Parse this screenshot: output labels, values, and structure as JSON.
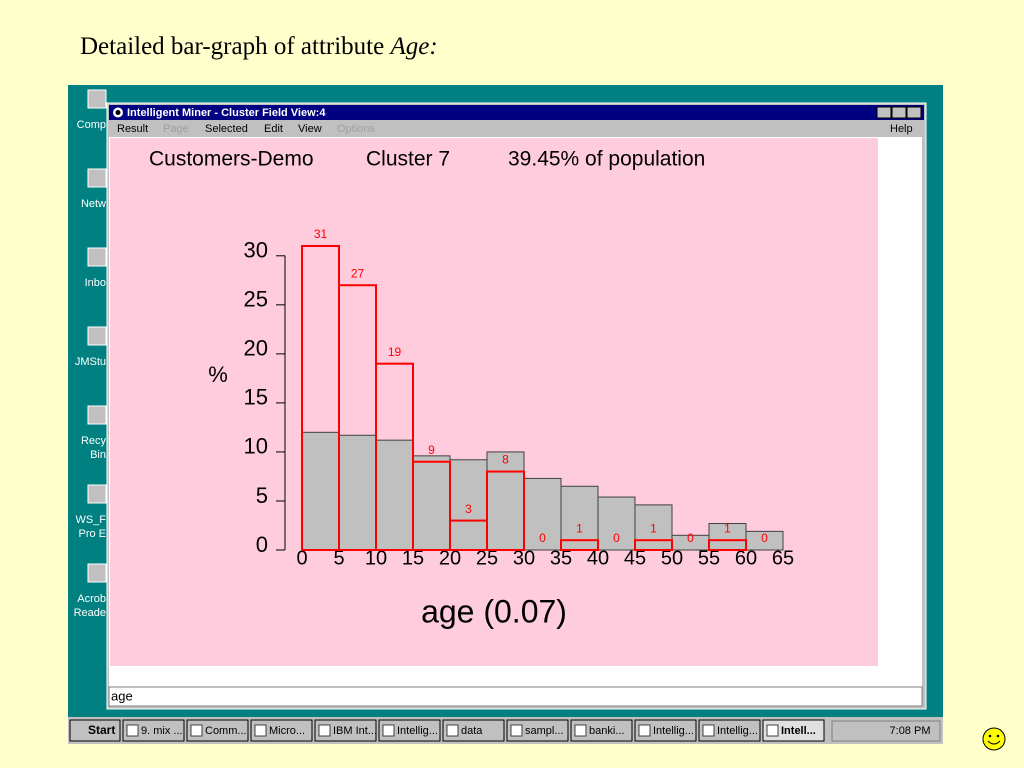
{
  "slide": {
    "title": "Detailed bar-graph of  attribute ",
    "title_italic": "Age:"
  },
  "desktop": {
    "icons": [
      [
        "Comp"
      ],
      [
        "Netw"
      ],
      [
        "Inbo"
      ],
      [
        "JMStu"
      ],
      [
        "Recy",
        "Bin"
      ],
      [
        "WS_F",
        "Pro E"
      ],
      [
        "Acrob",
        "Reade"
      ]
    ]
  },
  "window": {
    "title": "Intelligent Miner - Cluster Field View:4",
    "menu": [
      {
        "label": "Result",
        "enabled": true
      },
      {
        "label": "Page",
        "enabled": false
      },
      {
        "label": "Selected",
        "enabled": true
      },
      {
        "label": "Edit",
        "enabled": true
      },
      {
        "label": "View",
        "enabled": true
      },
      {
        "label": "Options",
        "enabled": false
      }
    ],
    "help": "Help",
    "status": "age"
  },
  "taskbar": {
    "start": "Start",
    "buttons": [
      "9. mix ...",
      "Comm...",
      "Micro...",
      "IBM Int...",
      "Intellig...",
      "data",
      "sampl...",
      "banki...",
      "Intellig...",
      "Intellig...",
      "Intell..."
    ],
    "clock": "7:08 PM"
  },
  "chart_data": {
    "type": "histogram",
    "title_parts": [
      "Customers-Demo",
      "Cluster 7",
      "39.45% of population"
    ],
    "y_label": "%",
    "x_label": "age (0.07)",
    "bins": [
      0,
      5,
      10,
      15,
      20,
      25,
      30,
      35,
      40,
      45,
      50,
      55,
      60,
      65
    ],
    "xlim": [
      0,
      65
    ],
    "xticks": [
      0,
      5,
      10,
      15,
      20,
      25,
      30,
      35,
      40,
      45,
      50,
      55,
      60,
      65
    ],
    "ylim": [
      0,
      31
    ],
    "yticks": [
      0,
      5,
      10,
      15,
      20,
      25,
      30
    ],
    "series": [
      {
        "color": "#c0c0c0",
        "values": [
          12,
          11.7,
          11.2,
          9.6,
          9.2,
          10,
          7.3,
          6.5,
          5.4,
          4.6,
          1.5,
          2.7,
          1.9
        ]
      },
      {
        "color": "#ff0000",
        "values": [
          31,
          27,
          19,
          9,
          3,
          8,
          0,
          1,
          0,
          1,
          0,
          1,
          0
        ]
      }
    ]
  }
}
